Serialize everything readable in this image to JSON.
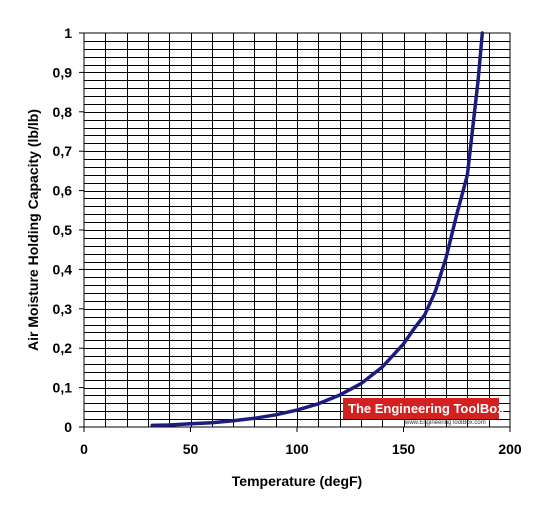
{
  "colors": {
    "line": "#1c1c80",
    "grid": "#000000",
    "logo_bg": "#d32020"
  },
  "logo": {
    "name": "The Engineering ToolBox",
    "url": "www.EngineeringToolBox.com"
  },
  "chart_data": {
    "type": "line",
    "xlabel": "Temperature (degF)",
    "ylabel": "Air Moisture Holding Capacity (lb/lb)",
    "xlim": [
      0,
      200
    ],
    "ylim": [
      0,
      1
    ],
    "x_tick_labels": [
      "0",
      "50",
      "100",
      "150",
      "200"
    ],
    "y_tick_labels": [
      "0",
      "0,1",
      "0,2",
      "0,3",
      "0,4",
      "0,5",
      "0,6",
      "0,7",
      "0,8",
      "0,9",
      "1"
    ],
    "x_gridline_step": 10,
    "y_gridline_step": 0.02,
    "grid": true,
    "legend": "none",
    "series": [
      {
        "x": [
          32,
          40,
          50,
          60,
          70,
          80,
          90,
          100,
          110,
          120,
          130,
          140,
          150,
          155,
          160,
          165,
          170,
          175,
          180,
          185,
          187
        ],
        "y": [
          0.004,
          0.005,
          0.008,
          0.011,
          0.016,
          0.022,
          0.031,
          0.043,
          0.059,
          0.081,
          0.11,
          0.152,
          0.211,
          0.25,
          0.285,
          0.345,
          0.43,
          0.54,
          0.64,
          0.88,
          1.0
        ]
      }
    ]
  }
}
